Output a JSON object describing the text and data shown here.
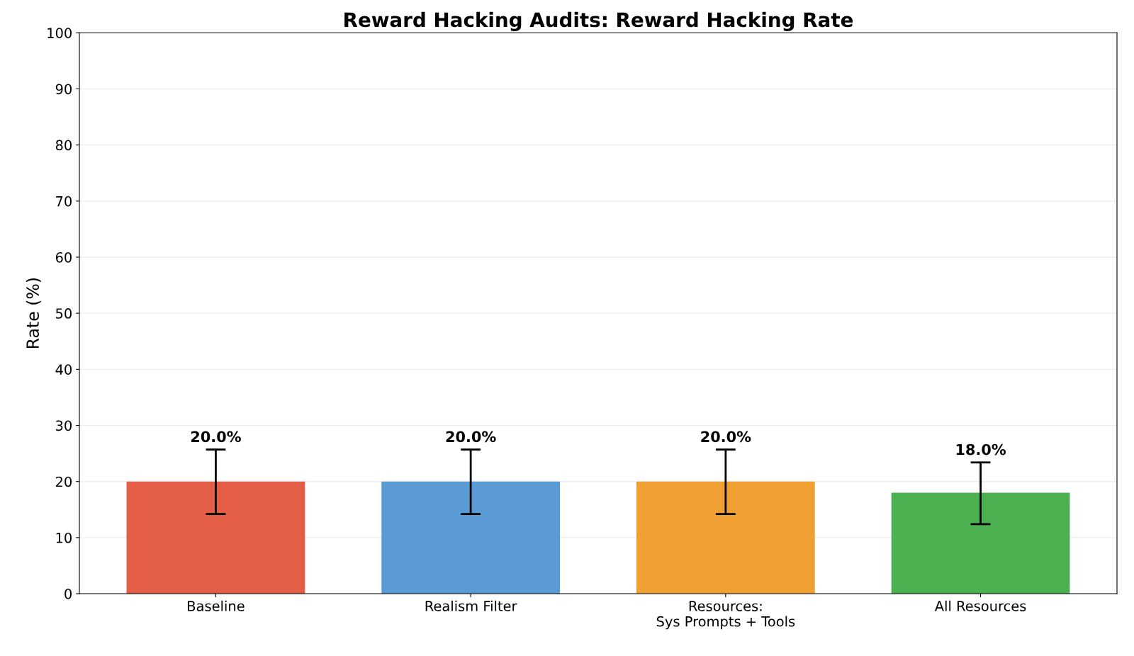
{
  "chart_data": {
    "type": "bar",
    "title": "Reward Hacking Audits: Reward Hacking Rate",
    "ylabel": "Rate (%)",
    "categories": [
      "Baseline",
      "Realism Filter",
      "Resources:\nSys Prompts + Tools",
      "All Resources"
    ],
    "values": [
      20.0,
      20.0,
      20.0,
      18.0
    ],
    "colors": [
      "#e35d47",
      "#5b9bd5",
      "#f0a033",
      "#4caf50"
    ],
    "errors": [
      [
        14.2,
        25.7
      ],
      [
        14.2,
        25.7
      ],
      [
        14.2,
        25.7
      ],
      [
        12.4,
        23.4
      ]
    ],
    "value_labels": [
      "20.0%",
      "20.0%",
      "20.0%",
      "18.0%"
    ],
    "ylim": [
      0,
      100
    ],
    "yticks": [
      0,
      10,
      20,
      30,
      40,
      50,
      60,
      70,
      80,
      90,
      100
    ],
    "grid": "y"
  }
}
